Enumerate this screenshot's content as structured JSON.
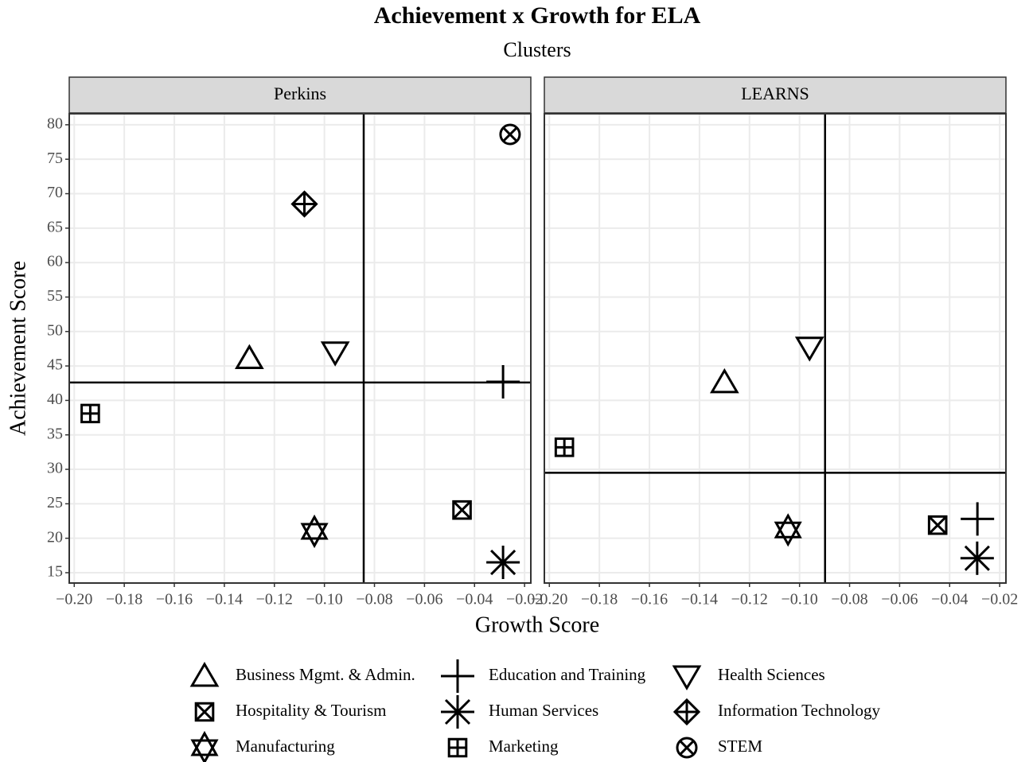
{
  "chart_data": {
    "type": "scatter",
    "title": "Achievement x Growth for ELA",
    "subtitle": "Clusters",
    "x_label": "Growth Score",
    "y_label": "Achievement Score",
    "xlim": [
      -0.202,
      -0.0175
    ],
    "ylim": [
      13.5,
      81.6
    ],
    "xticks": [
      {
        "value": -0.2,
        "label": "−0.20"
      },
      {
        "value": -0.18,
        "label": "−0.18"
      },
      {
        "value": -0.16,
        "label": "−0.16"
      },
      {
        "value": -0.14,
        "label": "−0.14"
      },
      {
        "value": -0.12,
        "label": "−0.12"
      },
      {
        "value": -0.1,
        "label": "−0.10"
      },
      {
        "value": -0.08,
        "label": "−0.08"
      },
      {
        "value": -0.06,
        "label": "−0.06"
      },
      {
        "value": -0.04,
        "label": "−0.04"
      },
      {
        "value": -0.02,
        "label": "−0.02"
      }
    ],
    "yticks": [
      15,
      20,
      25,
      30,
      35,
      40,
      45,
      50,
      55,
      60,
      65,
      70,
      75,
      80
    ],
    "grid": true,
    "color": "#000000",
    "series": [
      {
        "name": "Business Mgmt. & Admin.",
        "shape": "triangle"
      },
      {
        "name": "Education and Training",
        "shape": "plus"
      },
      {
        "name": "Health Sciences",
        "shape": "triangle-down"
      },
      {
        "name": "Hospitality & Tourism",
        "shape": "square-cross"
      },
      {
        "name": "Human Services",
        "shape": "asterisk"
      },
      {
        "name": "Information Technology",
        "shape": "diamond-plus"
      },
      {
        "name": "Manufacturing",
        "shape": "star"
      },
      {
        "name": "Marketing",
        "shape": "square-plus"
      },
      {
        "name": "STEM",
        "shape": "circle-cross"
      }
    ],
    "facets": [
      {
        "label": "Perkins",
        "x": [
          -0.13,
          -0.0286,
          -0.0957,
          -0.045,
          -0.0286,
          -0.108,
          -0.104,
          -0.1936,
          -0.0258
        ],
        "y": [
          46.1,
          42.7,
          47.0,
          24.1,
          16.5,
          68.5,
          21.0,
          38.1,
          78.6
        ],
        "vline": -0.0843,
        "hline": 42.6
      },
      {
        "label": "LEARNS",
        "x": [
          -0.13,
          -0.0289,
          -0.096,
          -0.0448,
          -0.029,
          null,
          -0.1046,
          -0.194,
          null
        ],
        "y": [
          42.6,
          22.8,
          47.7,
          21.9,
          17.1,
          null,
          21.2,
          33.2,
          null
        ],
        "vline": -0.0898,
        "hline": 29.5
      }
    ]
  }
}
